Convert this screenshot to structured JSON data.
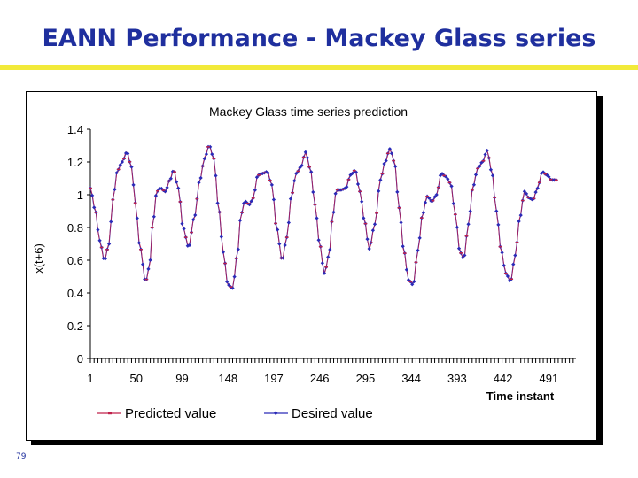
{
  "slide": {
    "title": "EANN Performance - Mackey Glass series",
    "page_number": "79"
  },
  "chart_data": {
    "type": "line",
    "title": "Mackey Glass time series prediction",
    "xlabel": "Time instant",
    "ylabel": "x(t+6)",
    "xlim": [
      1,
      520
    ],
    "ylim": [
      0,
      1.4
    ],
    "y_ticks": [
      0,
      0.2,
      0.4,
      0.6,
      0.8,
      1,
      1.2,
      1.4
    ],
    "y_tick_labels": [
      "0",
      "0.2",
      "0.4",
      "0.6",
      "0.8",
      "1",
      "1.2",
      "1.4"
    ],
    "x_ticks": [
      1,
      50,
      99,
      148,
      197,
      246,
      295,
      344,
      393,
      442,
      491
    ],
    "legend_position": "bottom",
    "key_points": [
      [
        1,
        1.04
      ],
      [
        6,
        0.91
      ],
      [
        11,
        0.72
      ],
      [
        16,
        0.6
      ],
      [
        21,
        0.7
      ],
      [
        25,
        0.97
      ],
      [
        30,
        1.15
      ],
      [
        35,
        1.2
      ],
      [
        40,
        1.26
      ],
      [
        45,
        1.17
      ],
      [
        49,
        0.95
      ],
      [
        54,
        0.68
      ],
      [
        60,
        0.47
      ],
      [
        64,
        0.56
      ],
      [
        68,
        0.84
      ],
      [
        72,
        1.02
      ],
      [
        76,
        1.04
      ],
      [
        81,
        1.02
      ],
      [
        86,
        1.09
      ],
      [
        90,
        1.15
      ],
      [
        95,
        1.04
      ],
      [
        100,
        0.8
      ],
      [
        106,
        0.68
      ],
      [
        112,
        0.86
      ],
      [
        118,
        1.09
      ],
      [
        123,
        1.22
      ],
      [
        128,
        1.3
      ],
      [
        133,
        1.22
      ],
      [
        138,
        0.92
      ],
      [
        143,
        0.65
      ],
      [
        148,
        0.45
      ],
      [
        153,
        0.43
      ],
      [
        158,
        0.63
      ],
      [
        162,
        0.88
      ],
      [
        166,
        0.96
      ],
      [
        171,
        0.94
      ],
      [
        175,
        0.98
      ],
      [
        180,
        1.12
      ],
      [
        185,
        1.13
      ],
      [
        190,
        1.14
      ],
      [
        195,
        1.06
      ],
      [
        200,
        0.8
      ],
      [
        206,
        0.6
      ],
      [
        211,
        0.74
      ],
      [
        216,
        1.0
      ],
      [
        221,
        1.13
      ],
      [
        226,
        1.17
      ],
      [
        231,
        1.26
      ],
      [
        236,
        1.16
      ],
      [
        241,
        0.94
      ],
      [
        246,
        0.7
      ],
      [
        251,
        0.52
      ],
      [
        256,
        0.63
      ],
      [
        260,
        0.87
      ],
      [
        264,
        1.03
      ],
      [
        269,
        1.03
      ],
      [
        274,
        1.04
      ],
      [
        279,
        1.12
      ],
      [
        284,
        1.15
      ],
      [
        289,
        1.02
      ],
      [
        294,
        0.84
      ],
      [
        299,
        0.67
      ],
      [
        305,
        0.82
      ],
      [
        311,
        1.09
      ],
      [
        316,
        1.2
      ],
      [
        321,
        1.28
      ],
      [
        326,
        1.2
      ],
      [
        331,
        0.92
      ],
      [
        336,
        0.66
      ],
      [
        341,
        0.48
      ],
      [
        346,
        0.45
      ],
      [
        351,
        0.66
      ],
      [
        356,
        0.88
      ],
      [
        361,
        0.99
      ],
      [
        366,
        0.96
      ],
      [
        371,
        1.0
      ],
      [
        376,
        1.13
      ],
      [
        381,
        1.11
      ],
      [
        386,
        1.07
      ],
      [
        391,
        0.88
      ],
      [
        396,
        0.65
      ],
      [
        400,
        0.61
      ],
      [
        405,
        0.82
      ],
      [
        410,
        1.05
      ],
      [
        415,
        1.16
      ],
      [
        420,
        1.2
      ],
      [
        425,
        1.27
      ],
      [
        430,
        1.14
      ],
      [
        435,
        0.9
      ],
      [
        440,
        0.66
      ],
      [
        445,
        0.52
      ],
      [
        450,
        0.47
      ],
      [
        455,
        0.63
      ],
      [
        460,
        0.86
      ],
      [
        465,
        1.02
      ],
      [
        470,
        0.98
      ],
      [
        474,
        0.97
      ],
      [
        479,
        1.04
      ],
      [
        484,
        1.14
      ],
      [
        489,
        1.12
      ],
      [
        494,
        1.09
      ],
      [
        500,
        1.09
      ]
    ],
    "series": [
      {
        "name": "Predicted value",
        "color": "#c0204a",
        "marker": "dash"
      },
      {
        "name": "Desired value",
        "color": "#2a2ab8",
        "marker": "diamond"
      }
    ]
  }
}
